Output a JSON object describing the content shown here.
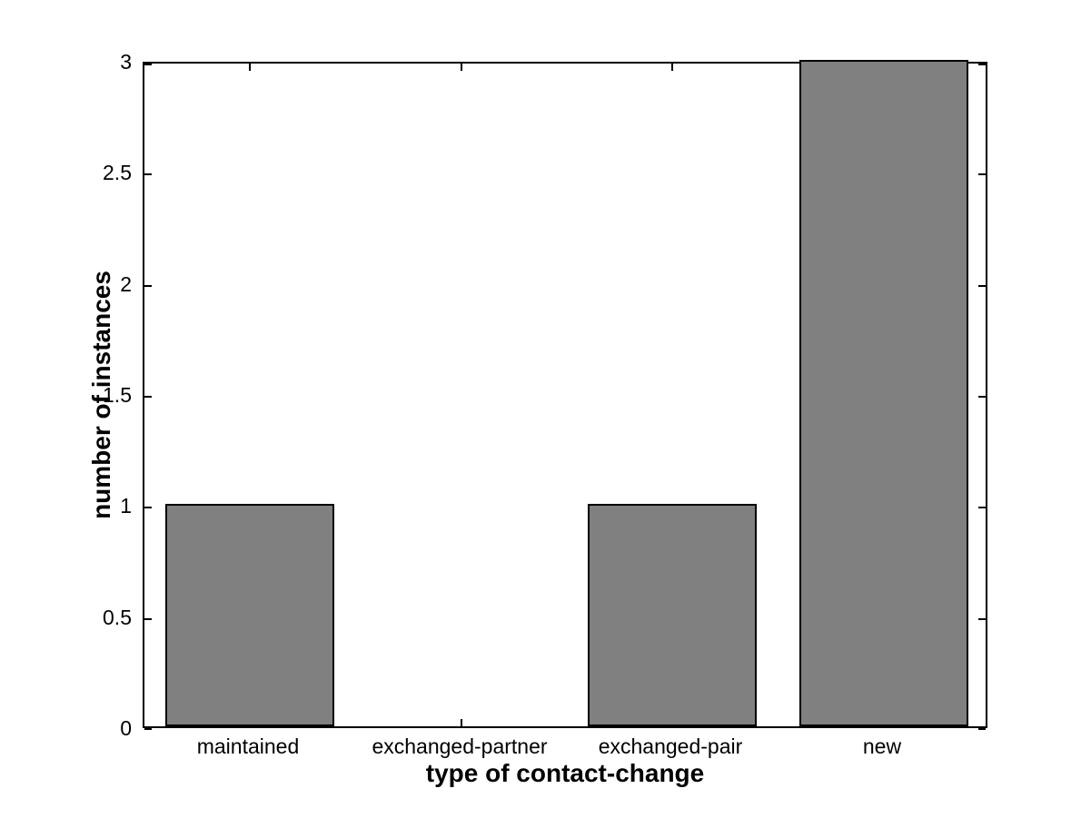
{
  "chart_data": {
    "type": "bar",
    "title": "",
    "xlabel": "type of contact-change",
    "ylabel": "number of instances",
    "categories": [
      "maintained",
      "exchanged-partner",
      "exchanged-pair",
      "new"
    ],
    "values": [
      1,
      0,
      1,
      3
    ],
    "ylim": [
      0,
      3
    ],
    "yticks": [
      "0",
      "0.5",
      "1",
      "1.5",
      "2",
      "2.5",
      "3"
    ],
    "ytick_values": [
      0,
      0.5,
      1,
      1.5,
      2,
      2.5,
      3
    ],
    "xlim": [
      0.5,
      4.5
    ],
    "bar_width_units": 0.8,
    "bar_fill_color": "#808080",
    "bar_edge_color": "#000000",
    "axis_color": "#000000",
    "background_color": "#ffffff",
    "grid": false,
    "tick_direction": "in",
    "box": true,
    "legend": null
  }
}
